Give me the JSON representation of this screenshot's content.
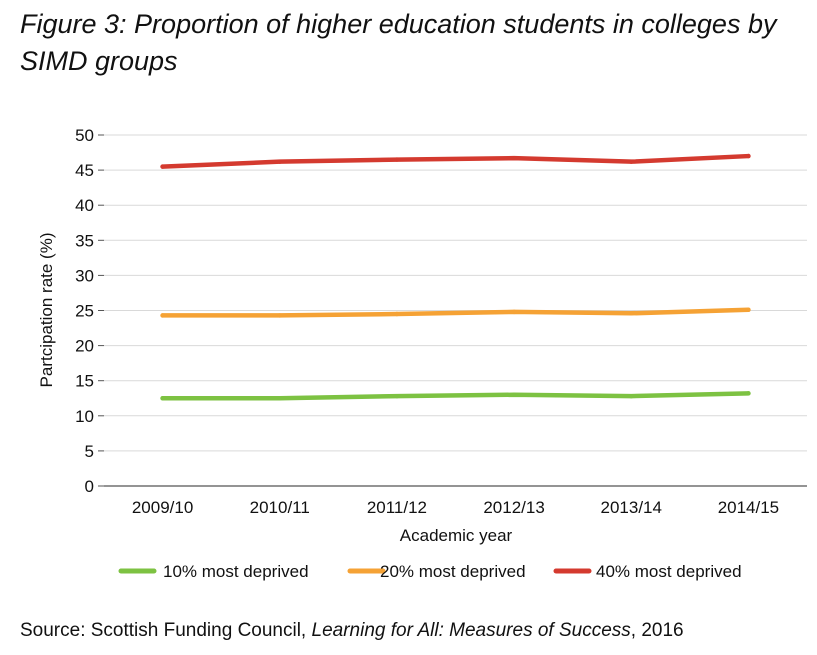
{
  "figure": {
    "title": "Figure 3: Proportion of higher education students in colleges by SIMD groups"
  },
  "source": {
    "prefix": "Source: Scottish Funding Council, ",
    "publication": "Learning for All: Measures of Success",
    "suffix": ", 2016"
  },
  "chart_data": {
    "type": "line",
    "title": "",
    "xlabel": "Academic year",
    "ylabel": "Partcipation rate (%)",
    "categories": [
      "2009/10",
      "2010/11",
      "2011/12",
      "2012/13",
      "2013/14",
      "2014/15"
    ],
    "ylim": [
      0,
      50
    ],
    "yticks": [
      0,
      5,
      10,
      15,
      20,
      25,
      30,
      35,
      40,
      45,
      50
    ],
    "grid": "horizontal",
    "legend": "bottom",
    "series": [
      {
        "name": "10% most deprived",
        "color": "#7dc242",
        "values": [
          12.5,
          12.5,
          12.8,
          13.0,
          12.8,
          13.2
        ]
      },
      {
        "name": "20% most deprived",
        "color": "#f5a235",
        "values": [
          24.3,
          24.3,
          24.5,
          24.8,
          24.6,
          25.1
        ]
      },
      {
        "name": "40% most deprived",
        "color": "#d43a2f",
        "values": [
          45.5,
          46.2,
          46.5,
          46.7,
          46.2,
          47.0
        ]
      }
    ]
  }
}
